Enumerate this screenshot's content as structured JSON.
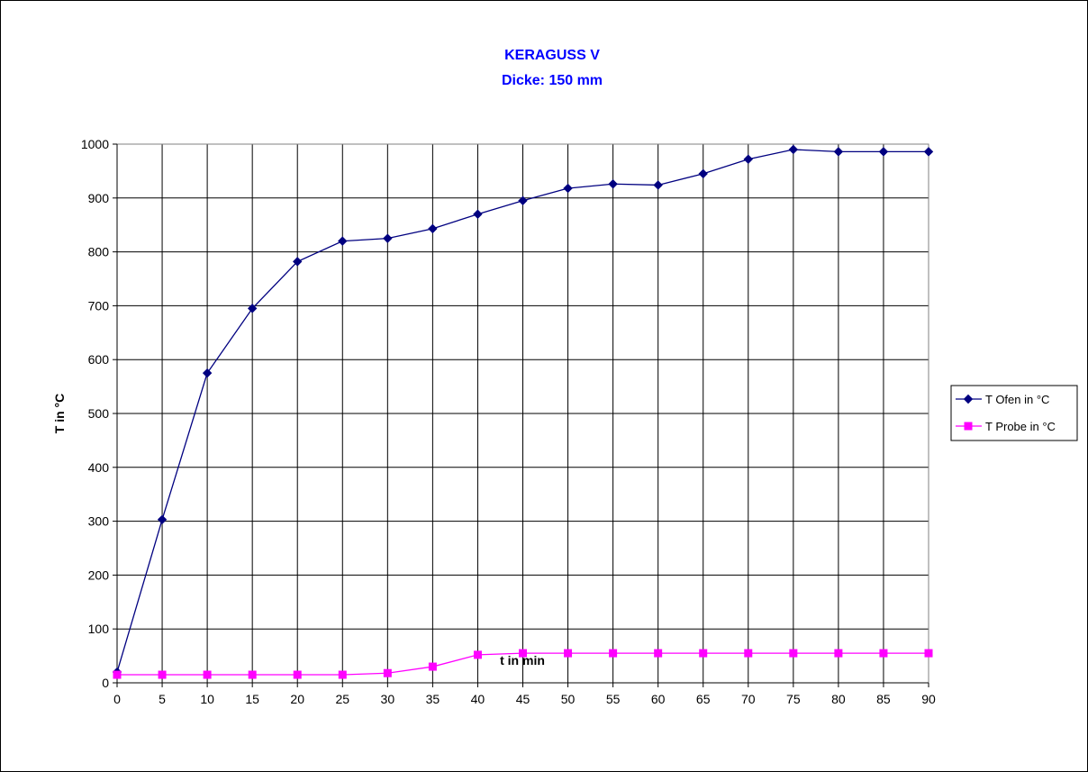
{
  "chart_data": {
    "type": "line",
    "title": "KERAGUSS V",
    "subtitle": "Dicke: 150 mm",
    "xlabel": "t in min",
    "ylabel": "T in °C",
    "xlim": [
      0,
      90
    ],
    "ylim": [
      0,
      1000
    ],
    "x_ticks": [
      0,
      5,
      10,
      15,
      20,
      25,
      30,
      35,
      40,
      45,
      50,
      55,
      60,
      65,
      70,
      75,
      80,
      85,
      90
    ],
    "y_ticks": [
      0,
      100,
      200,
      300,
      400,
      500,
      600,
      700,
      800,
      900,
      1000
    ],
    "grid": true,
    "legend_position": "right",
    "x": [
      0,
      5,
      10,
      15,
      20,
      25,
      30,
      35,
      40,
      45,
      50,
      55,
      60,
      65,
      70,
      75,
      80,
      85,
      90
    ],
    "series": [
      {
        "name": "T Ofen in °C",
        "color": "#000080",
        "marker": "diamond",
        "values": [
          20,
          303,
          575,
          695,
          782,
          820,
          825,
          843,
          870,
          895,
          918,
          926,
          924,
          945,
          972,
          990,
          986,
          986,
          986
        ]
      },
      {
        "name": "T Probe in °C",
        "color": "#ff00ff",
        "marker": "square",
        "values": [
          15,
          15,
          15,
          15,
          15,
          15,
          18,
          30,
          52,
          55,
          55,
          55,
          55,
          55,
          55,
          55,
          55,
          55,
          55
        ]
      }
    ]
  }
}
